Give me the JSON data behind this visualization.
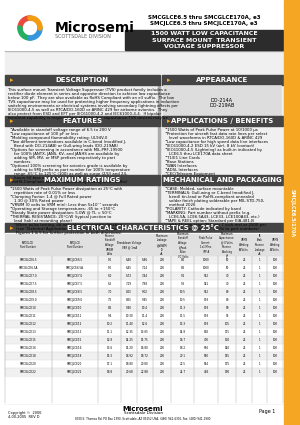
{
  "title_part1": "SMCGLCE6.5 thru SMCGLCE170A, e3",
  "title_part2": "SMCJLCE6.5 thru SMCJLCE170A, e3",
  "subtitle": "1500 WATT LOW CAPACITANCE\nSURFACE MOUNT  TRANSIENT\nVOLTAGE SUPPRESSOR",
  "company": "Microsemi",
  "division": "SCOTTSDALE DIVISION",
  "page": "Page 1",
  "copyright": "Copyright ©  2006\n4-00-2005  REV D",
  "footer_addr": "8700 E. Thomas Rd. PO Box 1390, Scottsdale, AZ 85252 USA, (480) 941-6300, Fax: (480) 941-1900",
  "section_desc": "DESCRIPTION",
  "section_appear": "APPEARANCE",
  "section_features": "FEATURES",
  "section_apps": "APPLICATIONS / BENEFITS",
  "section_max": "MAXIMUM RATINGS",
  "section_mech": "MECHANICAL AND PACKAGING",
  "section_elec": "ELECTRICAL CHARACTERISTICS @ 25°C",
  "bg_color": "#ffffff",
  "orange_color": "#f5a623",
  "dark_section_bg": "#444444",
  "logo_arc_colors": [
    "#e74c3c",
    "#27ae60",
    "#3498db",
    "#f39c12"
  ]
}
